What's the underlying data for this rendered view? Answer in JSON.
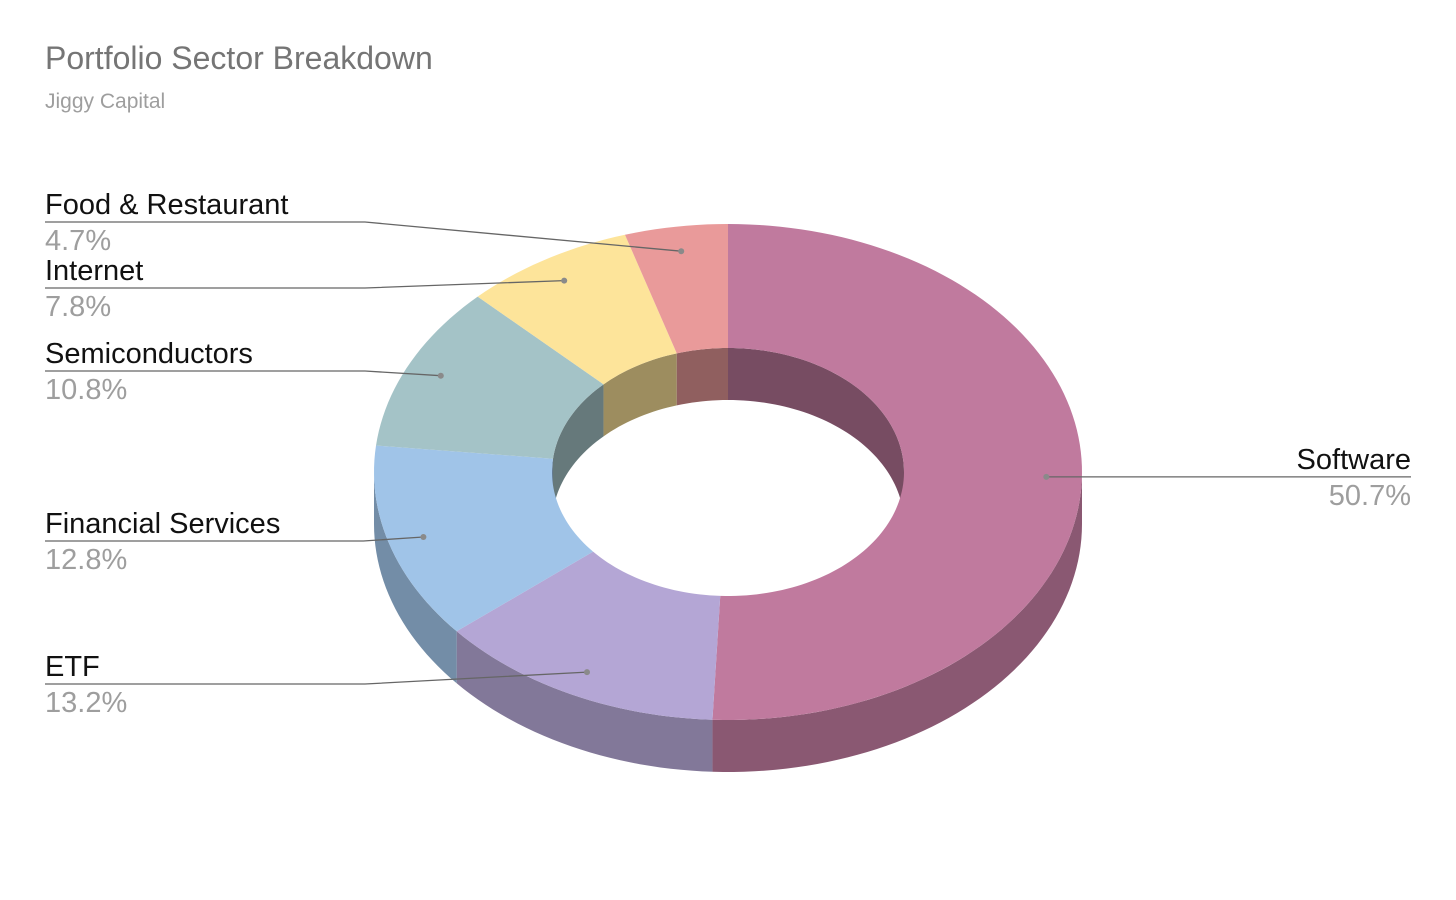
{
  "chart_data": {
    "type": "pie",
    "variant": "3d-donut",
    "title": "Portfolio Sector Breakdown",
    "subtitle": "Jiggy Capital",
    "slices": [
      {
        "label": "Software",
        "value": 50.7,
        "display": "50.7%",
        "color": "#c07a9e"
      },
      {
        "label": "ETF",
        "value": 13.2,
        "display": "13.2%",
        "color": "#b4a6d5"
      },
      {
        "label": "Financial Services",
        "value": 12.8,
        "display": "12.8%",
        "color": "#a0c4e8"
      },
      {
        "label": "Semiconductors",
        "value": 10.8,
        "display": "10.8%",
        "color": "#a4c3c7"
      },
      {
        "label": "Internet",
        "value": 7.8,
        "display": "7.8%",
        "color": "#fde49a"
      },
      {
        "label": "Food & Restaurant",
        "value": 4.7,
        "display": "4.7%",
        "color": "#e99a9a"
      }
    ],
    "legend": "none"
  }
}
